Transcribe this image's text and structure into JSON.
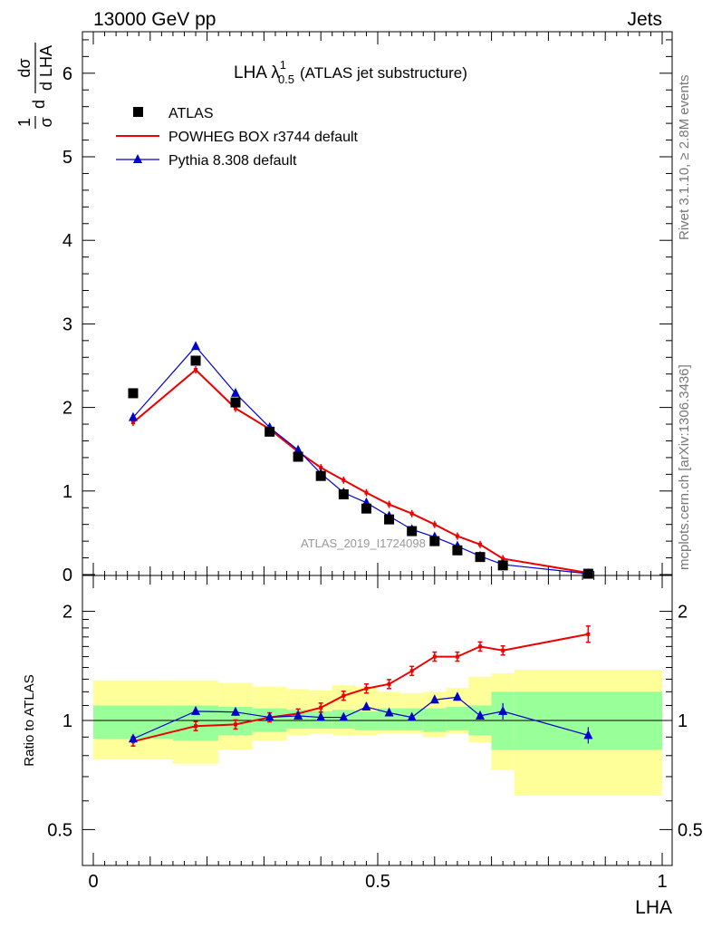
{
  "header": {
    "left": "13000 GeV pp",
    "right": "Jets"
  },
  "side": {
    "rivet": "Rivet 3.1.10, ≥ 2.8M events",
    "mcplots": "mcplots.cern.ch [arXiv:1306.3436]"
  },
  "main_title": {
    "prefix": "LHA λ",
    "sup": "1",
    "sub": "0.5",
    "suffix": "(ATLAS jet substructure)"
  },
  "watermark": "ATLAS_2019_I1724098",
  "upper_ylabel": {
    "frac1_num": "1",
    "frac1_den": "σ",
    "d1": "d",
    "frac2_num": "dσ",
    "frac2_den": "d LHA"
  },
  "lower_ylabel": "Ratio to ATLAS",
  "xlabel": "LHA",
  "colors": {
    "data": "#000000",
    "powheg": "#ee0000",
    "pythia": "#0000cc",
    "band_inner": "#99ff99",
    "band_outer": "#ffff99"
  },
  "chart_data": [
    {
      "type": "scatter",
      "panel": "main",
      "x_range": [
        0,
        1
      ],
      "y_range": [
        0,
        6.5
      ],
      "y_ticks": [
        "0",
        "1",
        "2",
        "3",
        "4",
        "5",
        "6"
      ],
      "legend_position": "top-left",
      "bins": [
        [
          0,
          0.14
        ],
        [
          0.14,
          0.22
        ],
        [
          0.22,
          0.28
        ],
        [
          0.28,
          0.34
        ],
        [
          0.34,
          0.38
        ],
        [
          0.38,
          0.42
        ],
        [
          0.42,
          0.46
        ],
        [
          0.46,
          0.5
        ],
        [
          0.5,
          0.54
        ],
        [
          0.54,
          0.58
        ],
        [
          0.58,
          0.62
        ],
        [
          0.62,
          0.66
        ],
        [
          0.66,
          0.7
        ],
        [
          0.7,
          0.74
        ],
        [
          0.74,
          1.0
        ]
      ],
      "x": [
        0.07,
        0.18,
        0.25,
        0.31,
        0.36,
        0.4,
        0.44,
        0.48,
        0.52,
        0.56,
        0.6,
        0.64,
        0.68,
        0.72,
        0.87
      ],
      "series": [
        {
          "name": "ATLAS",
          "marker": "square",
          "values": [
            2.17,
            2.56,
            2.06,
            1.71,
            1.41,
            1.18,
            0.96,
            0.79,
            0.66,
            0.52,
            0.4,
            0.29,
            0.21,
            0.11,
            0.01
          ]
        },
        {
          "name": "POWHEG BOX r3744 default",
          "marker": "line",
          "values": [
            1.82,
            2.45,
            1.99,
            1.74,
            1.47,
            1.28,
            1.13,
            0.98,
            0.84,
            0.73,
            0.6,
            0.46,
            0.36,
            0.19,
            0.02
          ]
        },
        {
          "name": "Pythia 8.308 default",
          "marker": "triangle",
          "values": [
            1.88,
            2.73,
            2.17,
            1.76,
            1.49,
            1.21,
            0.98,
            0.86,
            0.7,
            0.54,
            0.45,
            0.34,
            0.22,
            0.12,
            0.01
          ]
        }
      ]
    },
    {
      "type": "line",
      "panel": "ratio",
      "x_range": [
        0,
        1
      ],
      "y_range": [
        0.42,
        2.3
      ],
      "y_scale": "log",
      "y_ticks": [
        "0.5",
        "1",
        "2"
      ],
      "x_ticks": [
        "0",
        "0.5",
        "1"
      ],
      "reference": 1.0,
      "x": [
        0.07,
        0.18,
        0.25,
        0.31,
        0.36,
        0.4,
        0.44,
        0.48,
        0.52,
        0.56,
        0.6,
        0.64,
        0.68,
        0.72,
        0.87
      ],
      "series": [
        {
          "name": "POWHEG BOX r3744 default",
          "values": [
            0.875,
            0.965,
            0.975,
            1.02,
            1.045,
            1.085,
            1.17,
            1.225,
            1.26,
            1.37,
            1.5,
            1.5,
            1.6,
            1.56,
            1.73
          ]
        },
        {
          "name": "Pythia 8.308 default",
          "values": [
            0.89,
            1.06,
            1.055,
            1.02,
            1.03,
            1.02,
            1.02,
            1.09,
            1.05,
            1.02,
            1.14,
            1.16,
            1.03,
            1.06,
            0.91
          ]
        }
      ],
      "band_inner_lo": [
        0.89,
        0.88,
        0.91,
        0.93,
        0.95,
        0.95,
        0.95,
        0.94,
        0.94,
        0.94,
        0.93,
        0.94,
        0.91,
        0.83,
        0.83
      ],
      "band_inner_hi": [
        1.1,
        1.1,
        1.09,
        1.08,
        1.07,
        1.06,
        1.07,
        1.06,
        1.08,
        1.08,
        1.08,
        1.09,
        1.1,
        1.2,
        1.2
      ],
      "band_outer_lo": [
        0.78,
        0.76,
        0.83,
        0.88,
        0.91,
        0.92,
        0.91,
        0.91,
        0.92,
        0.92,
        0.9,
        0.92,
        0.87,
        0.73,
        0.62
      ],
      "band_outer_hi": [
        1.29,
        1.29,
        1.27,
        1.24,
        1.22,
        1.21,
        1.25,
        1.24,
        1.2,
        1.19,
        1.2,
        1.23,
        1.32,
        1.35,
        1.38
      ]
    }
  ]
}
